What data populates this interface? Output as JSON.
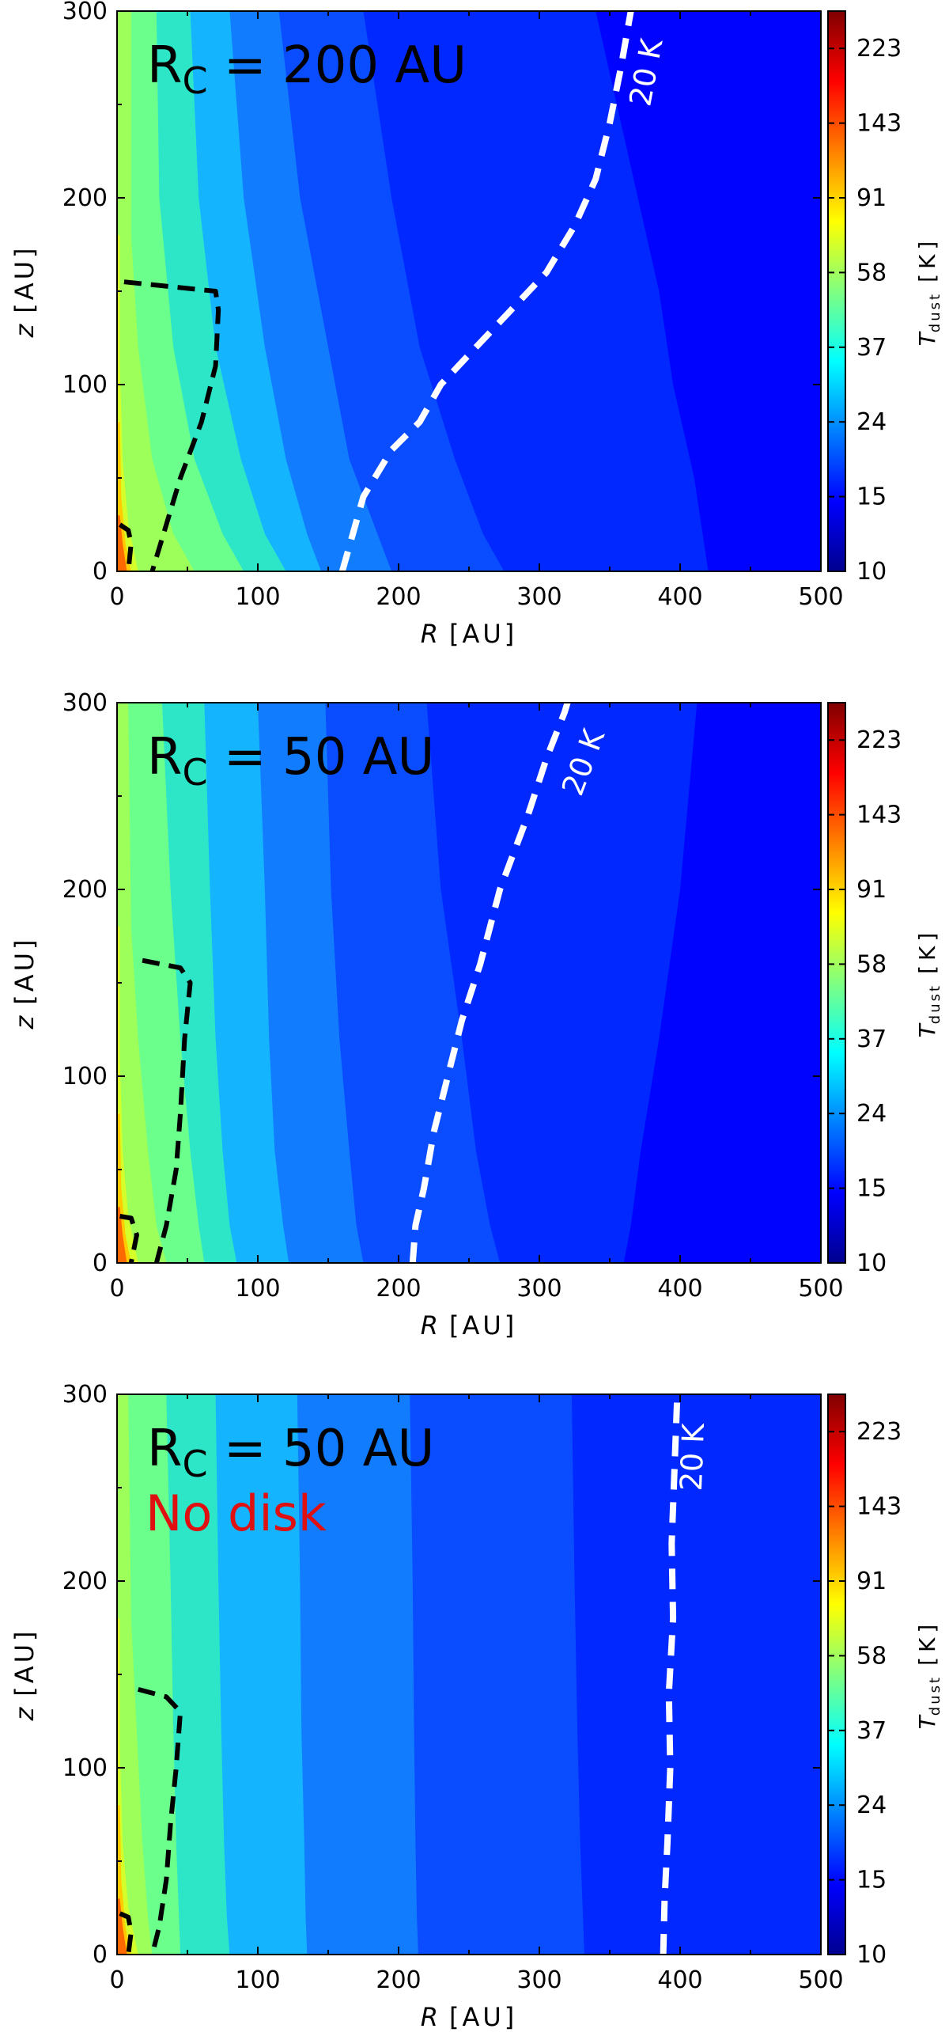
{
  "chart_data": [
    {
      "type": "heatmap",
      "title": "",
      "panel_label": "R",
      "panel_label_sub": "C",
      "panel_label_rest": " = 200 AU",
      "panel_note": "",
      "xlabel_var": "R",
      "xlabel_unit": "[AU]",
      "ylabel_var": "z",
      "ylabel_unit": "[AU]",
      "xlim": [
        0,
        500
      ],
      "ylim": [
        0,
        300
      ],
      "xticks": [
        "0",
        "100",
        "200",
        "300",
        "400",
        "500"
      ],
      "yticks": [
        "0",
        "100",
        "200",
        "300"
      ],
      "colorbar_label_var": "T",
      "colorbar_label_sub": "dust",
      "colorbar_label_unit": "[K]",
      "colorbar_ticks": [
        "10",
        "15",
        "24",
        "37",
        "58",
        "91",
        "143",
        "223"
      ],
      "contour_levels_K": [
        10,
        15,
        24,
        37,
        58,
        91,
        143,
        223
      ],
      "isotherm_label": "20 K",
      "isotherm_20K": [
        [
          160,
          0
        ],
        [
          175,
          40
        ],
        [
          195,
          65
        ],
        [
          215,
          80
        ],
        [
          230,
          100
        ],
        [
          255,
          120
        ],
        [
          280,
          140
        ],
        [
          305,
          160
        ],
        [
          325,
          185
        ],
        [
          340,
          210
        ],
        [
          350,
          240
        ],
        [
          358,
          270
        ],
        [
          365,
          300
        ]
      ],
      "boundaries": [
        [
          [
            10,
            300
          ],
          [
            10,
            180
          ],
          [
            15,
            120
          ],
          [
            25,
            60
          ],
          [
            40,
            20
          ],
          [
            55,
            0
          ]
        ],
        [
          [
            28,
            300
          ],
          [
            30,
            200
          ],
          [
            40,
            120
          ],
          [
            55,
            60
          ],
          [
            75,
            20
          ],
          [
            90,
            0
          ]
        ],
        [
          [
            52,
            300
          ],
          [
            58,
            200
          ],
          [
            70,
            120
          ],
          [
            88,
            60
          ],
          [
            105,
            20
          ],
          [
            120,
            0
          ]
        ],
        [
          [
            80,
            300
          ],
          [
            90,
            200
          ],
          [
            105,
            120
          ],
          [
            120,
            60
          ],
          [
            135,
            20
          ],
          [
            145,
            0
          ]
        ],
        [
          [
            115,
            300
          ],
          [
            130,
            200
          ],
          [
            150,
            120
          ],
          [
            165,
            60
          ],
          [
            185,
            20
          ],
          [
            195,
            0
          ]
        ],
        [
          [
            175,
            300
          ],
          [
            195,
            200
          ],
          [
            215,
            120
          ],
          [
            240,
            60
          ],
          [
            260,
            20
          ],
          [
            275,
            0
          ]
        ],
        [
          [
            340,
            300
          ],
          [
            355,
            250
          ],
          [
            370,
            200
          ],
          [
            385,
            150
          ],
          [
            395,
            100
          ],
          [
            410,
            50
          ],
          [
            420,
            0
          ]
        ]
      ],
      "inner_contours": [
        [
          [
            2,
            180
          ],
          [
            2,
            110
          ],
          [
            4,
            60
          ],
          [
            8,
            25
          ],
          [
            15,
            0
          ]
        ],
        [
          [
            2,
            80
          ],
          [
            3,
            40
          ],
          [
            6,
            15
          ],
          [
            10,
            0
          ]
        ],
        [
          [
            2,
            30
          ],
          [
            4,
            15
          ],
          [
            7,
            0
          ]
        ]
      ],
      "dashed_disk": [
        [
          5,
          155
        ],
        [
          70,
          150
        ],
        [
          72,
          140
        ],
        [
          70,
          110
        ],
        [
          60,
          80
        ],
        [
          45,
          50
        ],
        [
          35,
          25
        ],
        [
          25,
          0
        ]
      ],
      "dashed_inner": [
        [
          2,
          25
        ],
        [
          8,
          22
        ],
        [
          10,
          15
        ],
        [
          8,
          0
        ]
      ]
    },
    {
      "type": "heatmap",
      "title": "",
      "panel_label": "R",
      "panel_label_sub": "C",
      "panel_label_rest": " = 50 AU",
      "panel_note": "",
      "xlabel_var": "R",
      "xlabel_unit": "[AU]",
      "ylabel_var": "z",
      "ylabel_unit": "[AU]",
      "xlim": [
        0,
        500
      ],
      "ylim": [
        0,
        300
      ],
      "xticks": [
        "0",
        "100",
        "200",
        "300",
        "400",
        "500"
      ],
      "yticks": [
        "0",
        "100",
        "200",
        "300"
      ],
      "colorbar_label_var": "T",
      "colorbar_label_sub": "dust",
      "colorbar_label_unit": "[K]",
      "colorbar_ticks": [
        "10",
        "15",
        "24",
        "37",
        "58",
        "91",
        "143",
        "223"
      ],
      "contour_levels_K": [
        10,
        15,
        24,
        37,
        58,
        91,
        143,
        223
      ],
      "isotherm_label": "20 K",
      "isotherm_20K": [
        [
          210,
          0
        ],
        [
          212,
          20
        ],
        [
          218,
          40
        ],
        [
          225,
          70
        ],
        [
          235,
          100
        ],
        [
          245,
          130
        ],
        [
          258,
          160
        ],
        [
          272,
          200
        ],
        [
          292,
          240
        ],
        [
          305,
          270
        ],
        [
          318,
          295
        ],
        [
          320,
          300
        ]
      ],
      "boundaries": [
        [
          [
            8,
            300
          ],
          [
            10,
            180
          ],
          [
            15,
            120
          ],
          [
            22,
            60
          ],
          [
            28,
            20
          ],
          [
            35,
            0
          ]
        ],
        [
          [
            32,
            300
          ],
          [
            38,
            200
          ],
          [
            45,
            120
          ],
          [
            52,
            60
          ],
          [
            58,
            20
          ],
          [
            62,
            0
          ]
        ],
        [
          [
            62,
            300
          ],
          [
            66,
            200
          ],
          [
            70,
            120
          ],
          [
            75,
            60
          ],
          [
            80,
            20
          ],
          [
            85,
            0
          ]
        ],
        [
          [
            100,
            300
          ],
          [
            105,
            200
          ],
          [
            108,
            120
          ],
          [
            112,
            60
          ],
          [
            118,
            20
          ],
          [
            122,
            0
          ]
        ],
        [
          [
            148,
            300
          ],
          [
            152,
            200
          ],
          [
            158,
            120
          ],
          [
            165,
            60
          ],
          [
            170,
            20
          ],
          [
            175,
            0
          ]
        ],
        [
          [
            220,
            300
          ],
          [
            230,
            200
          ],
          [
            245,
            120
          ],
          [
            255,
            60
          ],
          [
            265,
            20
          ],
          [
            272,
            0
          ]
        ],
        [
          [
            412,
            300
          ],
          [
            400,
            200
          ],
          [
            385,
            120
          ],
          [
            372,
            60
          ],
          [
            365,
            20
          ],
          [
            360,
            0
          ]
        ]
      ],
      "inner_contours": [
        [
          [
            2,
            180
          ],
          [
            2,
            110
          ],
          [
            4,
            60
          ],
          [
            8,
            25
          ],
          [
            15,
            0
          ]
        ],
        [
          [
            2,
            80
          ],
          [
            3,
            40
          ],
          [
            6,
            15
          ],
          [
            10,
            0
          ]
        ],
        [
          [
            2,
            30
          ],
          [
            4,
            15
          ],
          [
            7,
            0
          ]
        ]
      ],
      "dashed_disk": [
        [
          18,
          162
        ],
        [
          45,
          158
        ],
        [
          52,
          150
        ],
        [
          48,
          120
        ],
        [
          45,
          80
        ],
        [
          42,
          50
        ],
        [
          35,
          20
        ],
        [
          28,
          0
        ]
      ],
      "dashed_inner": [
        [
          2,
          25
        ],
        [
          10,
          24
        ],
        [
          14,
          15
        ],
        [
          10,
          0
        ]
      ]
    },
    {
      "type": "heatmap",
      "title": "",
      "panel_label": "R",
      "panel_label_sub": "C",
      "panel_label_rest": " = 50 AU",
      "panel_note": "No disk",
      "xlabel_var": "R",
      "xlabel_unit": "[AU]",
      "ylabel_var": "z",
      "ylabel_unit": "[AU]",
      "xlim": [
        0,
        500
      ],
      "ylim": [
        0,
        300
      ],
      "xticks": [
        "0",
        "100",
        "200",
        "300",
        "400",
        "500"
      ],
      "yticks": [
        "0",
        "100",
        "200",
        "300"
      ],
      "colorbar_label_var": "T",
      "colorbar_label_sub": "dust",
      "colorbar_label_unit": "[K]",
      "colorbar_ticks": [
        "10",
        "15",
        "24",
        "37",
        "58",
        "91",
        "143",
        "223"
      ],
      "contour_levels_K": [
        10,
        15,
        24,
        37,
        58,
        91,
        143,
        223
      ],
      "isotherm_label": "20 K",
      "isotherm_20K": [
        [
          388,
          0
        ],
        [
          389,
          30
        ],
        [
          391,
          60
        ],
        [
          393,
          100
        ],
        [
          392,
          140
        ],
        [
          395,
          180
        ],
        [
          394,
          220
        ],
        [
          396,
          260
        ],
        [
          398,
          300
        ]
      ],
      "boundaries": [
        [
          [
            8,
            300
          ],
          [
            10,
            180
          ],
          [
            14,
            120
          ],
          [
            18,
            60
          ],
          [
            22,
            20
          ],
          [
            25,
            0
          ]
        ],
        [
          [
            35,
            300
          ],
          [
            38,
            200
          ],
          [
            40,
            120
          ],
          [
            42,
            60
          ],
          [
            44,
            20
          ],
          [
            45,
            0
          ]
        ],
        [
          [
            70,
            300
          ],
          [
            72,
            200
          ],
          [
            74,
            120
          ],
          [
            76,
            60
          ],
          [
            78,
            20
          ],
          [
            80,
            0
          ]
        ],
        [
          [
            128,
            300
          ],
          [
            130,
            200
          ],
          [
            131,
            120
          ],
          [
            133,
            60
          ],
          [
            134,
            20
          ],
          [
            135,
            0
          ]
        ],
        [
          [
            208,
            300
          ],
          [
            210,
            200
          ],
          [
            211,
            120
          ],
          [
            212,
            60
          ],
          [
            213,
            20
          ],
          [
            214,
            0
          ]
        ],
        [
          [
            323,
            300
          ],
          [
            325,
            200
          ],
          [
            327,
            120
          ],
          [
            329,
            60
          ],
          [
            331,
            20
          ],
          [
            332,
            0
          ]
        ]
      ],
      "inner_contours": [
        [
          [
            2,
            180
          ],
          [
            2,
            110
          ],
          [
            4,
            60
          ],
          [
            8,
            25
          ],
          [
            15,
            0
          ]
        ],
        [
          [
            2,
            80
          ],
          [
            3,
            40
          ],
          [
            6,
            15
          ],
          [
            10,
            0
          ]
        ],
        [
          [
            2,
            30
          ],
          [
            4,
            15
          ],
          [
            7,
            0
          ]
        ]
      ],
      "dashed_disk": [
        [
          15,
          142
        ],
        [
          35,
          138
        ],
        [
          45,
          130
        ],
        [
          42,
          100
        ],
        [
          38,
          70
        ],
        [
          35,
          40
        ],
        [
          30,
          15
        ],
        [
          25,
          0
        ]
      ],
      "dashed_inner": [
        [
          2,
          22
        ],
        [
          8,
          20
        ],
        [
          10,
          12
        ],
        [
          8,
          0
        ]
      ]
    }
  ],
  "colors": {
    "bands": [
      "#9cff5a",
      "#6bff8c",
      "#2de6c8",
      "#14b4ff",
      "#127cff",
      "#0a4cff",
      "#0028ff",
      "#0004ff"
    ],
    "inner_bands": [
      "#d4ff2a",
      "#ffcc00",
      "#ff6a00"
    ],
    "colorbar": [
      "#00008f",
      "#0000ff",
      "#0080ff",
      "#00ffff",
      "#80ff80",
      "#ffff00",
      "#ff8000",
      "#ff0000",
      "#800000"
    ],
    "isotherm": "#ffffff",
    "dashed": "#000000",
    "note": "#e01010"
  }
}
